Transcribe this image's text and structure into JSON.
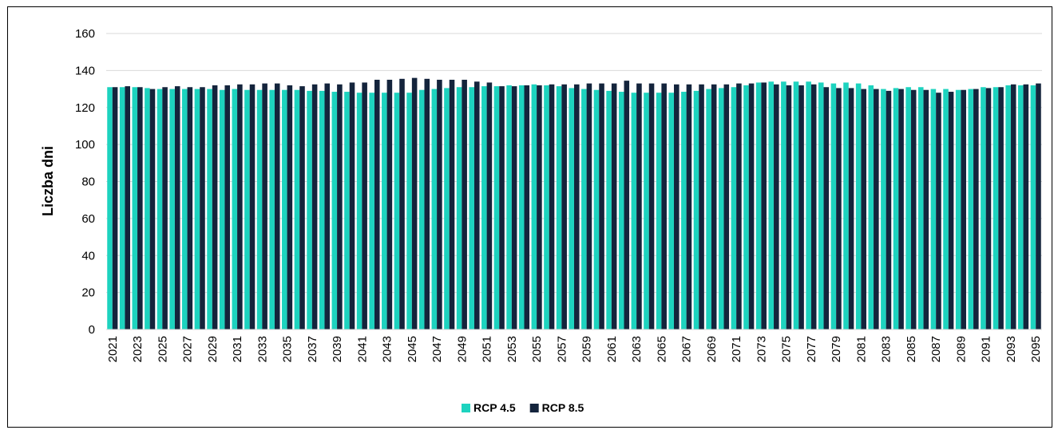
{
  "chart_data": {
    "type": "bar",
    "y_label": "Liczba dni",
    "categories": [
      "2021",
      null,
      "2023",
      null,
      "2025",
      null,
      "2027",
      null,
      "2029",
      null,
      "2031",
      null,
      "2033",
      null,
      "2035",
      null,
      "2037",
      null,
      "2039",
      null,
      "2041",
      null,
      "2043",
      null,
      "2045",
      null,
      "2047",
      null,
      "2049",
      null,
      "2051",
      null,
      "2053",
      null,
      "2055",
      null,
      "2057",
      null,
      "2059",
      null,
      "2061",
      null,
      "2063",
      null,
      "2065",
      null,
      "2067",
      null,
      "2069",
      null,
      "2071",
      null,
      "2073",
      null,
      "2075",
      null,
      "2077",
      null,
      "2079",
      null,
      "2081",
      null,
      "2083",
      null,
      "2085",
      null,
      "2087",
      null,
      "2089",
      null,
      "2091",
      null,
      "2093",
      null,
      "2095"
    ],
    "series": [
      {
        "name": "RCP 4.5",
        "color": "#1dd3bf",
        "values": [
          131,
          131,
          131,
          130.5,
          130,
          130,
          130,
          130,
          130,
          129.5,
          130,
          129.5,
          129.5,
          129.5,
          129.5,
          129.5,
          129,
          129,
          128.5,
          128.5,
          128,
          128,
          128,
          128,
          128,
          129.5,
          130,
          130.5,
          131,
          131,
          131.5,
          131.5,
          132,
          132,
          132.5,
          132,
          131.5,
          130.5,
          130,
          129.5,
          129,
          128.5,
          128,
          128,
          128,
          128,
          128.5,
          129,
          130,
          130.5,
          131,
          132,
          133.5,
          134,
          134,
          134,
          134,
          133.5,
          133,
          133.5,
          133,
          132,
          130,
          130.5,
          131,
          131,
          130,
          130,
          129.5,
          130,
          131,
          131,
          132,
          132,
          132
        ]
      },
      {
        "name": "RCP 8.5",
        "color": "#14243c",
        "values": [
          131,
          131.5,
          131,
          130,
          131,
          131.5,
          131,
          131,
          132,
          132,
          132.5,
          132.5,
          133,
          133,
          132,
          131.5,
          132.5,
          133,
          132.5,
          133.5,
          133.5,
          135,
          135,
          135.5,
          136,
          135.5,
          135,
          135,
          135,
          134,
          133.5,
          131.5,
          131.5,
          132,
          132,
          132.5,
          132.5,
          132.5,
          133,
          133,
          133,
          134.5,
          133,
          133,
          133,
          132.5,
          132.5,
          132.5,
          132.5,
          132.5,
          133,
          133,
          133.5,
          132.5,
          132,
          132,
          132.5,
          131,
          130.5,
          130.5,
          130,
          130,
          129,
          130,
          129.5,
          129.5,
          128,
          128.5,
          129.5,
          130,
          130.5,
          131,
          132.5,
          132.5,
          133
        ]
      }
    ],
    "ylim": [
      0,
      160
    ],
    "yticks": [
      0,
      20,
      40,
      60,
      80,
      100,
      120,
      140,
      160
    ],
    "grid": true,
    "legend": "bottom"
  }
}
